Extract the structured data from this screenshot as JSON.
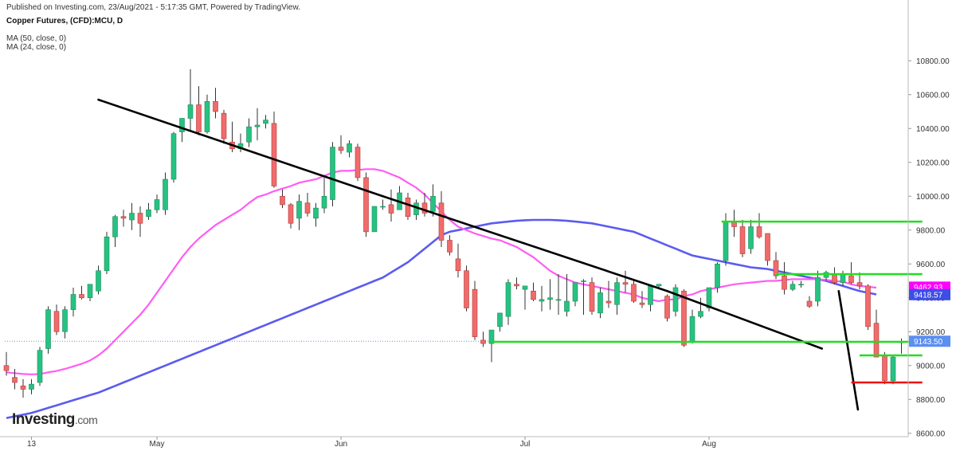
{
  "header": {
    "published": "Published on Investing.com, 23/Aug/2021 - 5:17:35 GMT, Powered by TradingView.",
    "symbol": "Copper Futures, (CFD):MCU, D",
    "ma1_label": "MA (50, close, 0)",
    "ma2_label": "MA (24, close, 0)"
  },
  "logo": {
    "main": "Investing",
    "suffix": ".com"
  },
  "chart_data": {
    "type": "candlestick",
    "ylim": [
      8580,
      10980
    ],
    "y_ticks": [
      8600,
      8800,
      9000,
      9200,
      9400,
      9600,
      9800,
      10000,
      10200,
      10400,
      10600,
      10800
    ],
    "y_tick_labels": [
      "8600.00",
      "8800.00",
      "9000.00",
      "9200.00",
      "9400.00",
      "9600.00",
      "9800.00",
      "10000.00",
      "10200.00",
      "10400.00",
      "10600.00",
      "10800.00"
    ],
    "x_labels": [
      {
        "label": "13",
        "index": 3
      },
      {
        "label": "May",
        "index": 18
      },
      {
        "label": "Jun",
        "index": 40
      },
      {
        "label": "Jul",
        "index": 62
      },
      {
        "label": "Aug",
        "index": 84
      }
    ],
    "candles": [
      [
        9000,
        9080,
        8970,
        8940
      ],
      [
        8930,
        8980,
        8900,
        8860
      ],
      [
        8880,
        8920,
        8860,
        8810
      ],
      [
        8860,
        8920,
        8890,
        8830
      ],
      [
        8900,
        9110,
        9090,
        8880
      ],
      [
        9100,
        9350,
        9330,
        9070
      ],
      [
        9320,
        9360,
        9200,
        9180
      ],
      [
        9200,
        9350,
        9330,
        9160
      ],
      [
        9330,
        9460,
        9420,
        9290
      ],
      [
        9420,
        9470,
        9400,
        9390
      ],
      [
        9400,
        9470,
        9480,
        9380
      ],
      [
        9440,
        9590,
        9560,
        9420
      ],
      [
        9560,
        9790,
        9760,
        9540
      ],
      [
        9760,
        9890,
        9880,
        9700
      ],
      [
        9880,
        9920,
        9870,
        9820
      ],
      [
        9860,
        9960,
        9900,
        9800
      ],
      [
        9900,
        9940,
        9840,
        9760
      ],
      [
        9880,
        9960,
        9920,
        9860
      ],
      [
        9920,
        10010,
        9980,
        9900
      ],
      [
        9920,
        10140,
        10100,
        9890
      ],
      [
        10100,
        10380,
        10370,
        10080
      ],
      [
        10380,
        10460,
        10460,
        10320
      ],
      [
        10460,
        10750,
        10540,
        10390
      ],
      [
        10540,
        10650,
        10380,
        10360
      ],
      [
        10380,
        10600,
        10560,
        10370
      ],
      [
        10560,
        10640,
        10500,
        10460
      ],
      [
        10490,
        10510,
        10340,
        10310
      ],
      [
        10320,
        10440,
        10280,
        10260
      ],
      [
        10280,
        10370,
        10310,
        10260
      ],
      [
        10320,
        10460,
        10410,
        10290
      ],
      [
        10410,
        10520,
        10420,
        10330
      ],
      [
        10430,
        10480,
        10450,
        10400
      ],
      [
        10430,
        10500,
        10060,
        10050
      ],
      [
        10000,
        10040,
        9950,
        9930
      ],
      [
        9950,
        9960,
        9840,
        9810
      ],
      [
        9870,
        10010,
        9970,
        9800
      ],
      [
        9960,
        10020,
        9900,
        9880
      ],
      [
        9870,
        9960,
        9930,
        9820
      ],
      [
        9930,
        10110,
        10000,
        9900
      ],
      [
        9980,
        10320,
        10290,
        9940
      ],
      [
        10290,
        10360,
        10270,
        10250
      ],
      [
        10260,
        10330,
        10310,
        10230
      ],
      [
        10290,
        10310,
        10110,
        10090
      ],
      [
        10110,
        10140,
        9790,
        9760
      ],
      [
        9790,
        9860,
        9940,
        9790
      ],
      [
        9940,
        9980,
        9940,
        9920
      ],
      [
        9950,
        10040,
        9900,
        9850
      ],
      [
        9920,
        10060,
        10020,
        9930
      ],
      [
        9990,
        10020,
        9880,
        9860
      ],
      [
        9890,
        9980,
        9960,
        9860
      ],
      [
        9960,
        10020,
        9900,
        9880
      ],
      [
        9910,
        10070,
        10000,
        9880
      ],
      [
        9960,
        10030,
        9740,
        9700
      ],
      [
        9740,
        9770,
        9670,
        9650
      ],
      [
        9630,
        9720,
        9560,
        9520
      ],
      [
        9560,
        9590,
        9340,
        9320
      ],
      [
        9450,
        9500,
        9170,
        9150
      ],
      [
        9150,
        9200,
        9130,
        9110
      ],
      [
        9130,
        9190,
        9210,
        9020
      ],
      [
        9230,
        9250,
        9310,
        9200
      ],
      [
        9290,
        9510,
        9490,
        9240
      ],
      [
        9480,
        9520,
        9470,
        9450
      ],
      [
        9450,
        9470,
        9470,
        9330
      ],
      [
        9440,
        9490,
        9390,
        9380
      ],
      [
        9380,
        9470,
        9390,
        9320
      ],
      [
        9390,
        9510,
        9400,
        9330
      ],
      [
        9390,
        9540,
        9390,
        9300
      ],
      [
        9320,
        9540,
        9380,
        9290
      ],
      [
        9380,
        9480,
        9490,
        9350
      ],
      [
        9500,
        9510,
        9500,
        9300
      ],
      [
        9490,
        9520,
        9320,
        9300
      ],
      [
        9310,
        9460,
        9430,
        9280
      ],
      [
        9380,
        9500,
        9370,
        9340
      ],
      [
        9360,
        9520,
        9490,
        9300
      ],
      [
        9490,
        9560,
        9480,
        9430
      ],
      [
        9480,
        9500,
        9380,
        9370
      ],
      [
        9370,
        9440,
        9360,
        9340
      ],
      [
        9360,
        9480,
        9470,
        9320
      ],
      [
        9470,
        9480,
        9480,
        9460
      ],
      [
        9410,
        9420,
        9280,
        9260
      ],
      [
        9320,
        9480,
        9460,
        9290
      ],
      [
        9440,
        9450,
        9120,
        9110
      ],
      [
        9140,
        9330,
        9290,
        9130
      ],
      [
        9290,
        9400,
        9320,
        9280
      ],
      [
        9340,
        9460,
        9460,
        9320
      ],
      [
        9460,
        9610,
        9600,
        9430
      ],
      [
        9620,
        9900,
        9850,
        9590
      ],
      [
        9850,
        9920,
        9820,
        9760
      ],
      [
        9820,
        9860,
        9660,
        9640
      ],
      [
        9690,
        9860,
        9820,
        9660
      ],
      [
        9820,
        9900,
        9760,
        9750
      ],
      [
        9780,
        9780,
        9620,
        9590
      ],
      [
        9620,
        9670,
        9530,
        9510
      ],
      [
        9530,
        9610,
        9450,
        9420
      ],
      [
        9450,
        9500,
        9480,
        9440
      ],
      [
        9480,
        9500,
        9480,
        9460
      ],
      [
        9380,
        9410,
        9350,
        9340
      ],
      [
        9380,
        9560,
        9520,
        9350
      ],
      [
        9520,
        9560,
        9550,
        9500
      ],
      [
        9540,
        9580,
        9490,
        9480
      ],
      [
        9490,
        9560,
        9540,
        9470
      ],
      [
        9530,
        9610,
        9490,
        9480
      ],
      [
        9490,
        9550,
        9470,
        9450
      ],
      [
        9470,
        9480,
        9230,
        9210
      ],
      [
        9250,
        9330,
        9050,
        9050
      ],
      [
        9060,
        9080,
        8910,
        8890
      ],
      [
        8910,
        9060,
        9050,
        8890
      ],
      [
        9140,
        9160,
        9140,
        9070
      ]
    ],
    "ma24": [
      8960,
      8955,
      8950,
      8948,
      8950,
      8960,
      8968,
      8980,
      8995,
      9010,
      9030,
      9060,
      9100,
      9150,
      9200,
      9250,
      9300,
      9360,
      9430,
      9500,
      9570,
      9640,
      9700,
      9750,
      9790,
      9830,
      9860,
      9890,
      9920,
      9960,
      9995,
      10010,
      10030,
      10045,
      10060,
      10080,
      10090,
      10100,
      10120,
      10140,
      10150,
      10150,
      10155,
      10160,
      10160,
      10150,
      10130,
      10110,
      10080,
      10050,
      10010,
      9960,
      9910,
      9860,
      9820,
      9800,
      9780,
      9765,
      9750,
      9740,
      9720,
      9700,
      9670,
      9640,
      9600,
      9560,
      9530,
      9510,
      9490,
      9480,
      9470,
      9460,
      9450,
      9440,
      9430,
      9420,
      9400,
      9390,
      9380,
      9390,
      9390,
      9410,
      9420,
      9440,
      9450,
      9460,
      9470,
      9480,
      9485,
      9490,
      9495,
      9500,
      9500,
      9505,
      9510,
      9510,
      9510,
      9510,
      9505,
      9500,
      9495,
      9480,
      9470,
      9465,
      9460
    ],
    "ma50": [
      8690,
      8700,
      8710,
      8720,
      8735,
      8750,
      8765,
      8780,
      8795,
      8810,
      8825,
      8840,
      8860,
      8880,
      8900,
      8920,
      8940,
      8960,
      8980,
      9000,
      9020,
      9040,
      9060,
      9080,
      9100,
      9120,
      9140,
      9160,
      9180,
      9200,
      9220,
      9240,
      9260,
      9280,
      9300,
      9320,
      9340,
      9360,
      9380,
      9400,
      9420,
      9440,
      9460,
      9480,
      9500,
      9520,
      9550,
      9580,
      9610,
      9650,
      9690,
      9730,
      9770,
      9790,
      9800,
      9810,
      9820,
      9830,
      9840,
      9845,
      9850,
      9855,
      9858,
      9860,
      9860,
      9860,
      9858,
      9855,
      9850,
      9845,
      9840,
      9830,
      9820,
      9810,
      9800,
      9790,
      9770,
      9750,
      9730,
      9710,
      9690,
      9670,
      9650,
      9640,
      9630,
      9620,
      9610,
      9600,
      9590,
      9580,
      9575,
      9570,
      9560,
      9550,
      9540,
      9530,
      9520,
      9510,
      9500,
      9485,
      9470,
      9455,
      9440,
      9430,
      9420
    ],
    "ma50_name": "MA (50, close, 0)",
    "ma24_name": "MA (24, close, 0)",
    "price_labels": [
      {
        "value": 9462.93,
        "text": "9462.93",
        "color": "#ff00ff"
      },
      {
        "value": 9418.57,
        "text": "9418.57",
        "color": "#3d4de6"
      },
      {
        "value": 9143.5,
        "text": "9143.50",
        "color": "#5b8ff0"
      }
    ],
    "current_price": 9143.5,
    "trendlines": [
      {
        "x1": 11.0,
        "y1": 10570,
        "x2": 45.0,
        "y2": 10000,
        "color": "#000000"
      },
      {
        "x1": 45.0,
        "y1": 10000,
        "x2": 79.0,
        "y2": 9440,
        "color": "#000000"
      },
      {
        "x1": 79.0,
        "y1": 9440,
        "x2": 97.5,
        "y2": 9100,
        "color": "#000000"
      },
      {
        "x1": 99.5,
        "y1": 9440,
        "x2": 101.8,
        "y2": 8740,
        "color": "#000000"
      }
    ],
    "levels": [
      {
        "value": 9850,
        "x_from": 85.5,
        "x_to": 109.5,
        "color": "#22dd22"
      },
      {
        "value": 9540,
        "x_from": 92.0,
        "x_to": 109.5,
        "color": "#22dd22"
      },
      {
        "value": 9140,
        "x_from": 58.0,
        "x_to": 109.5,
        "color": "#22dd22"
      },
      {
        "value": 9060,
        "x_from": 102.0,
        "x_to": 109.5,
        "color": "#22dd22"
      },
      {
        "value": 8900,
        "x_from": 101.0,
        "x_to": 109.5,
        "color": "#ee1111"
      }
    ],
    "colors": {
      "up": "#26c281",
      "down": "#f06b6b",
      "ma24": "#ff5cf4",
      "ma50": "#5b5bf0"
    }
  }
}
